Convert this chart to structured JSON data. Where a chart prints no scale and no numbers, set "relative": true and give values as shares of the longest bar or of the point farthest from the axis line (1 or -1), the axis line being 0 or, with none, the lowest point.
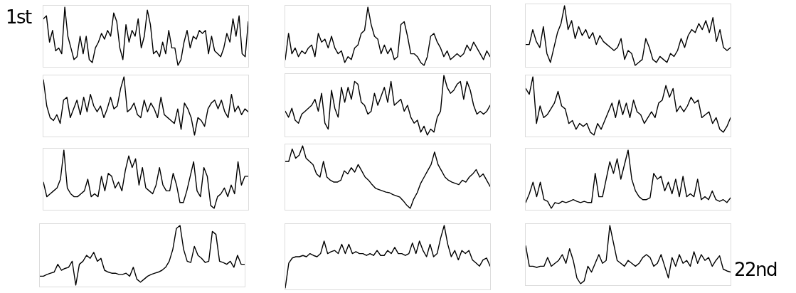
{
  "chart_data": [
    {
      "type": "line",
      "relative": true,
      "color": "#000000",
      "annotations": [
        "1st"
      ],
      "categories": [
        null,
        null,
        null,
        null,
        null,
        null,
        null,
        null,
        null,
        null,
        null,
        null,
        null,
        null,
        null,
        null,
        null,
        null,
        null,
        null,
        null,
        null,
        null,
        null,
        null,
        null,
        null,
        null,
        null,
        null,
        null,
        null,
        null,
        null,
        null,
        null,
        null,
        null,
        null,
        null,
        null,
        null,
        null,
        null,
        null,
        null,
        null,
        null,
        null,
        null,
        null,
        null,
        null,
        null,
        null,
        null,
        null,
        null,
        null,
        null,
        null,
        null,
        null,
        null,
        null,
        null,
        null,
        null
      ],
      "values": [
        0.8,
        0.85,
        0.4,
        0.6,
        0.25,
        0.3,
        0.2,
        1.0,
        0.5,
        0.3,
        0.1,
        0.15,
        0.5,
        0.2,
        0.5,
        0.1,
        0.05,
        0.3,
        0.4,
        0.55,
        0.45,
        0.6,
        0.5,
        0.9,
        0.75,
        0.3,
        0.1,
        0.7,
        0.4,
        0.6,
        0.5,
        0.8,
        0.3,
        0.5,
        0.95,
        0.7,
        0.2,
        0.25,
        0.15,
        0.4,
        0.2,
        0.6,
        0.3,
        0.3,
        0.0,
        0.1,
        0.4,
        0.6,
        0.3,
        0.5,
        0.45,
        0.6,
        0.55,
        0.6,
        0.2,
        0.5,
        0.25,
        0.2,
        0.15,
        0.3,
        0.55,
        0.4,
        0.8,
        0.5,
        0.85,
        0.2,
        0.15,
        0.75
      ]
    },
    {
      "type": "line",
      "relative": true,
      "color": "#000000",
      "categories": [
        null,
        null,
        null,
        null,
        null,
        null,
        null,
        null,
        null,
        null,
        null,
        null,
        null,
        null,
        null,
        null,
        null,
        null,
        null,
        null,
        null,
        null,
        null,
        null,
        null,
        null,
        null,
        null,
        null,
        null,
        null,
        null,
        null,
        null,
        null,
        null,
        null,
        null,
        null,
        null,
        null,
        null,
        null,
        null,
        null,
        null,
        null,
        null,
        null,
        null,
        null,
        null,
        null,
        null,
        null,
        null,
        null,
        null,
        null,
        null,
        null,
        null,
        null
      ],
      "values": [
        0.1,
        0.55,
        0.2,
        0.3,
        0.15,
        0.25,
        0.2,
        0.3,
        0.35,
        0.15,
        0.55,
        0.4,
        0.45,
        0.3,
        0.5,
        0.3,
        0.2,
        0.25,
        0.05,
        0.15,
        0.1,
        0.3,
        0.35,
        0.55,
        0.6,
        1.0,
        0.7,
        0.5,
        0.45,
        0.2,
        0.35,
        0.2,
        0.3,
        0.1,
        0.15,
        0.7,
        0.75,
        0.5,
        0.2,
        0.2,
        0.15,
        0.05,
        0.0,
        0.15,
        0.5,
        0.55,
        0.4,
        0.3,
        0.15,
        0.25,
        0.1,
        0.15,
        0.2,
        0.15,
        0.2,
        0.35,
        0.25,
        0.4,
        0.3,
        0.2,
        0.1,
        0.25,
        0.15
      ]
    },
    {
      "type": "line",
      "relative": true,
      "color": "#000000",
      "categories": [
        null,
        null,
        null,
        null,
        null,
        null,
        null,
        null,
        null,
        null,
        null,
        null,
        null,
        null,
        null,
        null,
        null,
        null,
        null,
        null,
        null,
        null,
        null,
        null,
        null,
        null,
        null,
        null,
        null,
        null,
        null,
        null,
        null,
        null,
        null,
        null,
        null,
        null,
        null,
        null,
        null,
        null,
        null,
        null,
        null,
        null,
        null,
        null,
        null,
        null,
        null,
        null,
        null,
        null,
        null,
        null,
        null,
        null,
        null
      ],
      "values": [
        0.35,
        0.35,
        0.6,
        0.4,
        0.3,
        0.65,
        0.2,
        0.05,
        0.3,
        0.55,
        0.7,
        1.0,
        0.6,
        0.75,
        0.45,
        0.65,
        0.5,
        0.6,
        0.45,
        0.55,
        0.35,
        0.5,
        0.4,
        0.35,
        0.3,
        0.25,
        0.3,
        0.45,
        0.1,
        0.25,
        0.2,
        0.0,
        0.05,
        0.1,
        0.45,
        0.3,
        0.1,
        0.05,
        0.15,
        0.1,
        0.05,
        0.2,
        0.15,
        0.25,
        0.45,
        0.3,
        0.5,
        0.6,
        0.55,
        0.7,
        0.6,
        0.75,
        0.55,
        0.8,
        0.4,
        0.6,
        0.3,
        0.25,
        0.3
      ]
    },
    {
      "type": "line",
      "relative": true,
      "color": "#000000",
      "categories": [
        null,
        null,
        null,
        null,
        null,
        null,
        null,
        null,
        null,
        null,
        null,
        null,
        null,
        null,
        null,
        null,
        null,
        null,
        null,
        null,
        null,
        null,
        null,
        null,
        null,
        null,
        null,
        null,
        null,
        null,
        null,
        null,
        null,
        null,
        null,
        null,
        null,
        null,
        null,
        null,
        null,
        null,
        null,
        null,
        null,
        null,
        null,
        null,
        null,
        null,
        null,
        null,
        null,
        null,
        null,
        null,
        null,
        null,
        null,
        null,
        null,
        null
      ],
      "values": [
        0.95,
        0.5,
        0.3,
        0.25,
        0.35,
        0.2,
        0.6,
        0.65,
        0.3,
        0.45,
        0.6,
        0.35,
        0.65,
        0.4,
        0.7,
        0.5,
        0.4,
        0.5,
        0.3,
        0.45,
        0.65,
        0.45,
        0.5,
        0.8,
        1.0,
        0.4,
        0.45,
        0.55,
        0.35,
        0.3,
        0.6,
        0.4,
        0.55,
        0.45,
        0.3,
        0.65,
        0.35,
        0.3,
        0.25,
        0.2,
        0.45,
        0.1,
        0.55,
        0.45,
        0.3,
        0.0,
        0.3,
        0.25,
        0.15,
        0.45,
        0.55,
        0.6,
        0.45,
        0.6,
        0.4,
        0.3,
        0.7,
        0.4,
        0.5,
        0.35,
        0.45,
        0.4
      ]
    },
    {
      "type": "line",
      "relative": true,
      "color": "#000000",
      "categories": [
        null,
        null,
        null,
        null,
        null,
        null,
        null,
        null,
        null,
        null,
        null,
        null,
        null,
        null,
        null,
        null,
        null,
        null,
        null,
        null,
        null,
        null,
        null,
        null,
        null,
        null,
        null,
        null,
        null,
        null,
        null,
        null,
        null,
        null,
        null,
        null,
        null,
        null,
        null,
        null,
        null,
        null,
        null,
        null,
        null,
        null,
        null,
        null,
        null,
        null,
        null,
        null,
        null,
        null,
        null,
        null,
        null,
        null,
        null,
        null,
        null,
        null,
        null
      ],
      "values": [
        0.4,
        0.3,
        0.45,
        0.25,
        0.2,
        0.35,
        0.4,
        0.45,
        0.5,
        0.6,
        0.4,
        0.7,
        0.2,
        0.1,
        0.75,
        0.45,
        0.3,
        0.8,
        0.55,
        0.8,
        0.6,
        0.9,
        0.85,
        0.55,
        0.5,
        0.35,
        0.4,
        0.7,
        0.5,
        0.65,
        0.8,
        0.55,
        0.9,
        0.5,
        0.55,
        0.6,
        0.4,
        0.5,
        0.3,
        0.2,
        0.25,
        0.05,
        0.15,
        0.0,
        0.1,
        0.05,
        0.3,
        0.4,
        1.0,
        0.8,
        0.7,
        0.75,
        0.85,
        0.9,
        0.6,
        0.9,
        0.75,
        0.5,
        0.35,
        0.4,
        0.35,
        0.4,
        0.5
      ]
    },
    {
      "type": "line",
      "relative": true,
      "color": "#000000",
      "categories": [
        null,
        null,
        null,
        null,
        null,
        null,
        null,
        null,
        null,
        null,
        null,
        null,
        null,
        null,
        null,
        null,
        null,
        null,
        null,
        null,
        null,
        null,
        null,
        null,
        null,
        null,
        null,
        null,
        null,
        null,
        null,
        null,
        null,
        null,
        null,
        null,
        null,
        null,
        null,
        null,
        null,
        null,
        null,
        null,
        null,
        null,
        null,
        null,
        null,
        null,
        null,
        null,
        null,
        null,
        null,
        null,
        null,
        null
      ],
      "values": [
        0.8,
        0.7,
        1.0,
        0.2,
        0.5,
        0.3,
        0.35,
        0.45,
        0.55,
        0.75,
        0.5,
        0.45,
        0.2,
        0.25,
        0.1,
        0.2,
        0.15,
        0.2,
        0.05,
        0.0,
        0.2,
        0.1,
        0.25,
        0.4,
        0.55,
        0.3,
        0.6,
        0.35,
        0.55,
        0.3,
        0.6,
        0.4,
        0.35,
        0.2,
        0.3,
        0.4,
        0.3,
        0.55,
        0.6,
        0.85,
        0.65,
        0.8,
        0.4,
        0.5,
        0.4,
        0.5,
        0.65,
        0.55,
        0.6,
        0.3,
        0.35,
        0.4,
        0.2,
        0.3,
        0.1,
        0.05,
        0.15,
        0.3
      ]
    },
    {
      "type": "line",
      "relative": true,
      "color": "#000000",
      "categories": [
        null,
        null,
        null,
        null,
        null,
        null,
        null,
        null,
        null,
        null,
        null,
        null,
        null,
        null,
        null,
        null,
        null,
        null,
        null,
        null,
        null,
        null,
        null,
        null,
        null,
        null,
        null,
        null,
        null,
        null,
        null,
        null,
        null,
        null,
        null,
        null,
        null,
        null,
        null,
        null,
        null,
        null,
        null,
        null,
        null,
        null,
        null,
        null,
        null,
        null,
        null,
        null,
        null,
        null,
        null,
        null,
        null,
        null,
        null,
        null,
        null
      ],
      "values": [
        0.45,
        0.2,
        0.25,
        0.3,
        0.35,
        0.5,
        1.0,
        0.35,
        0.25,
        0.2,
        0.2,
        0.25,
        0.3,
        0.5,
        0.2,
        0.25,
        0.2,
        0.55,
        0.3,
        0.6,
        0.55,
        0.35,
        0.45,
        0.3,
        0.65,
        0.9,
        0.7,
        0.85,
        0.4,
        0.7,
        0.35,
        0.3,
        0.25,
        0.4,
        0.7,
        0.4,
        0.3,
        0.3,
        0.6,
        0.4,
        0.1,
        0.1,
        0.3,
        0.55,
        0.8,
        0.3,
        0.2,
        0.7,
        0.55,
        0.05,
        0.0,
        0.2,
        0.25,
        0.35,
        0.2,
        0.4,
        0.25,
        0.8,
        0.4,
        0.55,
        0.55
      ]
    },
    {
      "type": "line",
      "relative": true,
      "color": "#000000",
      "categories": [
        null,
        null,
        null,
        null,
        null,
        null,
        null,
        null,
        null,
        null,
        null,
        null,
        null,
        null,
        null,
        null,
        null,
        null,
        null,
        null,
        null,
        null,
        null,
        null,
        null,
        null,
        null,
        null,
        null,
        null,
        null,
        null,
        null,
        null,
        null,
        null,
        null,
        null,
        null,
        null,
        null,
        null,
        null,
        null,
        null,
        null,
        null,
        null,
        null,
        null,
        null,
        null,
        null,
        null,
        null,
        null,
        null,
        null,
        null,
        null
      ],
      "values": [
        0.75,
        0.75,
        0.95,
        0.8,
        0.85,
        1.0,
        0.8,
        0.75,
        0.7,
        0.55,
        0.5,
        0.75,
        0.5,
        0.45,
        0.42,
        0.42,
        0.45,
        0.6,
        0.55,
        0.65,
        0.58,
        0.7,
        0.6,
        0.5,
        0.45,
        0.38,
        0.32,
        0.3,
        0.28,
        0.26,
        0.25,
        0.22,
        0.2,
        0.18,
        0.12,
        0.05,
        0.0,
        0.15,
        0.25,
        0.4,
        0.5,
        0.6,
        0.7,
        0.9,
        0.7,
        0.6,
        0.5,
        0.45,
        0.42,
        0.4,
        0.38,
        0.45,
        0.42,
        0.5,
        0.55,
        0.62,
        0.5,
        0.55,
        0.45,
        0.35
      ]
    },
    {
      "type": "line",
      "relative": true,
      "color": "#000000",
      "categories": [
        null,
        null,
        null,
        null,
        null,
        null,
        null,
        null,
        null,
        null,
        null,
        null,
        null,
        null,
        null,
        null,
        null,
        null,
        null,
        null,
        null,
        null,
        null,
        null,
        null,
        null,
        null,
        null,
        null,
        null,
        null,
        null,
        null,
        null,
        null,
        null,
        null,
        null,
        null,
        null,
        null,
        null,
        null,
        null,
        null,
        null,
        null,
        null,
        null,
        null,
        null,
        null,
        null,
        null,
        null,
        null,
        null
      ],
      "values": [
        0.1,
        0.25,
        0.45,
        0.2,
        0.45,
        0.15,
        0.12,
        0.0,
        0.1,
        0.08,
        0.12,
        0.1,
        0.12,
        0.15,
        0.12,
        0.1,
        0.12,
        0.1,
        0.1,
        0.6,
        0.2,
        0.2,
        0.5,
        0.8,
        0.6,
        0.85,
        0.5,
        0.75,
        1.0,
        0.5,
        0.3,
        0.2,
        0.15,
        0.15,
        0.18,
        0.6,
        0.5,
        0.55,
        0.3,
        0.45,
        0.25,
        0.5,
        0.2,
        0.55,
        0.2,
        0.25,
        0.2,
        0.5,
        0.15,
        0.2,
        0.15,
        0.3,
        0.15,
        0.12,
        0.15,
        0.1,
        0.18
      ]
    },
    {
      "type": "line",
      "relative": true,
      "color": "#000000",
      "categories": [
        null,
        null,
        null,
        null,
        null,
        null,
        null,
        null,
        null,
        null,
        null,
        null,
        null,
        null,
        null,
        null,
        null,
        null,
        null,
        null,
        null,
        null,
        null,
        null,
        null,
        null,
        null,
        null,
        null,
        null,
        null,
        null,
        null,
        null,
        null,
        null,
        null,
        null,
        null,
        null,
        null,
        null,
        null,
        null,
        null,
        null,
        null,
        null,
        null,
        null,
        null,
        null,
        null,
        null,
        null,
        null,
        null,
        null
      ],
      "values": [
        0.15,
        0.15,
        0.18,
        0.2,
        0.22,
        0.35,
        0.25,
        0.28,
        0.3,
        0.4,
        0.0,
        0.35,
        0.4,
        0.5,
        0.45,
        0.55,
        0.4,
        0.45,
        0.25,
        0.22,
        0.2,
        0.2,
        0.18,
        0.18,
        0.2,
        0.15,
        0.3,
        0.1,
        0.05,
        0.1,
        0.15,
        0.18,
        0.2,
        0.22,
        0.25,
        0.3,
        0.4,
        0.6,
        0.95,
        1.0,
        0.6,
        0.4,
        0.38,
        0.65,
        0.5,
        0.45,
        0.38,
        0.4,
        0.9,
        0.85,
        0.4,
        0.38,
        0.35,
        0.4,
        0.3,
        0.5,
        0.35,
        0.35
      ]
    },
    {
      "type": "line",
      "relative": true,
      "color": "#000000",
      "categories": [
        null,
        null,
        null,
        null,
        null,
        null,
        null,
        null,
        null,
        null,
        null,
        null,
        null,
        null,
        null,
        null,
        null,
        null,
        null,
        null,
        null,
        null,
        null,
        null,
        null,
        null,
        null,
        null,
        null,
        null,
        null,
        null,
        null,
        null,
        null,
        null,
        null,
        null,
        null,
        null,
        null,
        null,
        null,
        null,
        null,
        null,
        null,
        null,
        null,
        null,
        null,
        null,
        null,
        null,
        null,
        null,
        null,
        null,
        null
      ],
      "values": [
        0.0,
        0.4,
        0.48,
        0.5,
        0.5,
        0.52,
        0.5,
        0.55,
        0.52,
        0.5,
        0.55,
        0.75,
        0.55,
        0.58,
        0.6,
        0.55,
        0.7,
        0.55,
        0.7,
        0.55,
        0.58,
        0.55,
        0.55,
        0.52,
        0.55,
        0.52,
        0.6,
        0.52,
        0.52,
        0.6,
        0.55,
        0.65,
        0.55,
        0.55,
        0.52,
        0.55,
        0.72,
        0.55,
        0.75,
        0.6,
        0.5,
        0.7,
        0.5,
        0.55,
        0.8,
        1.0,
        0.7,
        0.5,
        0.6,
        0.45,
        0.6,
        0.55,
        0.6,
        0.45,
        0.4,
        0.35,
        0.45,
        0.48,
        0.35
      ]
    },
    {
      "type": "line",
      "relative": true,
      "color": "#000000",
      "annotations": [
        "22nd"
      ],
      "categories": [
        null,
        null,
        null,
        null,
        null,
        null,
        null,
        null,
        null,
        null,
        null,
        null,
        null,
        null,
        null,
        null,
        null,
        null,
        null,
        null,
        null,
        null,
        null,
        null,
        null,
        null,
        null,
        null,
        null,
        null,
        null,
        null,
        null,
        null,
        null,
        null,
        null,
        null,
        null,
        null,
        null,
        null,
        null,
        null,
        null,
        null,
        null,
        null,
        null,
        null,
        null,
        null,
        null,
        null,
        null,
        null,
        null
      ],
      "values": [
        0.65,
        0.3,
        0.3,
        0.28,
        0.3,
        0.3,
        0.45,
        0.3,
        0.35,
        0.4,
        0.5,
        0.35,
        0.6,
        0.4,
        0.1,
        0.0,
        0.05,
        0.3,
        0.2,
        0.35,
        0.5,
        0.35,
        0.4,
        1.0,
        0.7,
        0.4,
        0.35,
        0.3,
        0.4,
        0.35,
        0.3,
        0.35,
        0.45,
        0.5,
        0.45,
        0.3,
        0.35,
        0.5,
        0.3,
        0.1,
        0.45,
        0.3,
        0.5,
        0.35,
        0.4,
        0.3,
        0.55,
        0.35,
        0.5,
        0.4,
        0.45,
        0.3,
        0.4,
        0.48,
        0.25,
        0.22,
        0.2
      ]
    }
  ]
}
